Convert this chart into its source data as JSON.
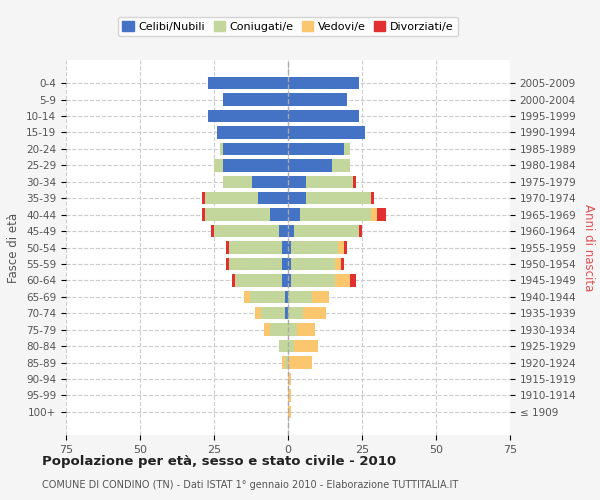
{
  "age_groups": [
    "100+",
    "95-99",
    "90-94",
    "85-89",
    "80-84",
    "75-79",
    "70-74",
    "65-69",
    "60-64",
    "55-59",
    "50-54",
    "45-49",
    "40-44",
    "35-39",
    "30-34",
    "25-29",
    "20-24",
    "15-19",
    "10-14",
    "5-9",
    "0-4"
  ],
  "birth_years": [
    "≤ 1909",
    "1910-1914",
    "1915-1919",
    "1920-1924",
    "1925-1929",
    "1930-1934",
    "1935-1939",
    "1940-1944",
    "1945-1949",
    "1950-1954",
    "1955-1959",
    "1960-1964",
    "1965-1969",
    "1970-1974",
    "1975-1979",
    "1980-1984",
    "1985-1989",
    "1990-1994",
    "1995-1999",
    "2000-2004",
    "2005-2009"
  ],
  "males": {
    "celibi": [
      0,
      0,
      0,
      0,
      0,
      0,
      1,
      1,
      2,
      2,
      2,
      3,
      6,
      10,
      12,
      22,
      22,
      24,
      27,
      22,
      27
    ],
    "coniugati": [
      0,
      0,
      0,
      1,
      3,
      6,
      8,
      12,
      16,
      18,
      18,
      22,
      22,
      18,
      10,
      3,
      1,
      0,
      0,
      0,
      0
    ],
    "vedovi": [
      0,
      0,
      0,
      1,
      0,
      2,
      2,
      2,
      0,
      0,
      0,
      0,
      0,
      0,
      0,
      0,
      0,
      0,
      0,
      0,
      0
    ],
    "divorziati": [
      0,
      0,
      0,
      0,
      0,
      0,
      0,
      0,
      1,
      1,
      1,
      1,
      1,
      1,
      0,
      0,
      0,
      0,
      0,
      0,
      0
    ]
  },
  "females": {
    "nubili": [
      0,
      0,
      0,
      0,
      0,
      0,
      0,
      0,
      1,
      1,
      1,
      2,
      4,
      6,
      6,
      15,
      19,
      26,
      24,
      20,
      24
    ],
    "coniugate": [
      0,
      0,
      0,
      0,
      2,
      3,
      5,
      8,
      15,
      15,
      16,
      22,
      24,
      22,
      16,
      6,
      2,
      0,
      0,
      0,
      0
    ],
    "vedove": [
      1,
      1,
      1,
      8,
      8,
      6,
      8,
      6,
      5,
      2,
      2,
      0,
      2,
      0,
      0,
      0,
      0,
      0,
      0,
      0,
      0
    ],
    "divorziate": [
      0,
      0,
      0,
      0,
      0,
      0,
      0,
      0,
      2,
      1,
      1,
      1,
      3,
      1,
      1,
      0,
      0,
      0,
      0,
      0,
      0
    ]
  },
  "colors": {
    "celibi": "#4472c4",
    "coniugati": "#c3d69b",
    "vedovi": "#fac76e",
    "divorziati": "#e03030"
  },
  "xlim": 75,
  "title": "Popolazione per età, sesso e stato civile - 2010",
  "subtitle": "COMUNE DI CONDINO (TN) - Dati ISTAT 1° gennaio 2010 - Elaborazione TUTTITALIA.IT",
  "ylabel_left": "Fasce di età",
  "ylabel_right": "Anni di nascita",
  "legend_labels": [
    "Celibi/Nubili",
    "Coniugati/e",
    "Vedovi/e",
    "Divorziati/e"
  ],
  "bg_color": "#f5f5f5",
  "plot_bg": "#ffffff"
}
